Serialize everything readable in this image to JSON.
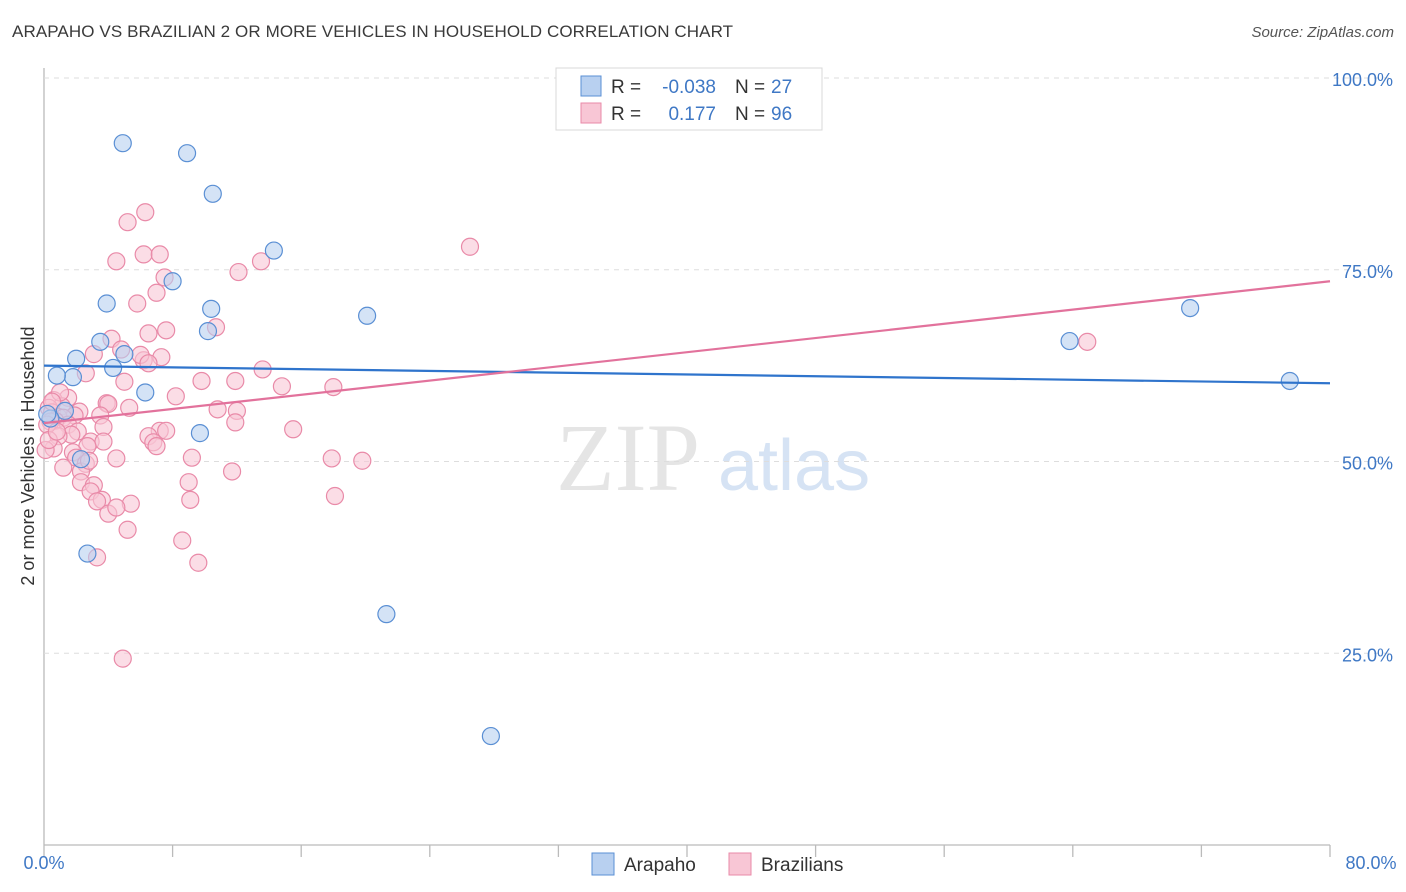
{
  "title": "ARAPAHO VS BRAZILIAN 2 OR MORE VEHICLES IN HOUSEHOLD CORRELATION CHART",
  "source": "Source: ZipAtlas.com",
  "watermark": {
    "zip": "ZIP",
    "atlas": "atlas"
  },
  "legend": {
    "rows": [
      {
        "r_label": "R =",
        "r_value": "-0.038",
        "n_label": "N =",
        "n_value": "27"
      },
      {
        "r_label": "R =",
        "r_value": "0.177",
        "n_label": "N =",
        "n_value": "96"
      }
    ]
  },
  "colors": {
    "arapaho_fill": "#b8d0f0",
    "arapaho_stroke": "#5a8fd4",
    "arapaho_line": "#2f74cc",
    "brazilian_fill": "#f8c6d5",
    "brazilian_stroke": "#e98aa8",
    "brazilian_line": "#e2729c",
    "tick": "#3f78c5",
    "grid": "#dddddd"
  },
  "chart_data": {
    "type": "scatter",
    "xlabel": "",
    "ylabel": "2 or more Vehicles in Household",
    "xlim": [
      0,
      80
    ],
    "ylim": [
      0,
      100
    ],
    "x_tick_labels": [
      "0.0%",
      "80.0%"
    ],
    "y_tick_labels": [
      "25.0%",
      "50.0%",
      "75.0%",
      "100.0%"
    ],
    "y_ticks": [
      25,
      50,
      75,
      100
    ],
    "series": [
      {
        "name": "Arapaho",
        "r": -0.038,
        "n": 27,
        "trend": {
          "x": [
            0,
            80
          ],
          "y": [
            62.5,
            60.2
          ]
        },
        "points": [
          [
            4.9,
            91.5
          ],
          [
            8.9,
            90.2
          ],
          [
            10.5,
            84.9
          ],
          [
            14.3,
            77.5
          ],
          [
            8.0,
            73.5
          ],
          [
            3.9,
            70.6
          ],
          [
            10.4,
            69.9
          ],
          [
            20.1,
            69.0
          ],
          [
            10.2,
            67.0
          ],
          [
            3.5,
            65.6
          ],
          [
            5.0,
            64.0
          ],
          [
            2.0,
            63.4
          ],
          [
            4.3,
            62.2
          ],
          [
            1.8,
            61.0
          ],
          [
            0.8,
            61.2
          ],
          [
            6.3,
            59.0
          ],
          [
            1.3,
            56.6
          ],
          [
            0.4,
            55.6
          ],
          [
            9.7,
            53.7
          ],
          [
            2.3,
            50.3
          ],
          [
            2.7,
            38.0
          ],
          [
            21.3,
            30.1
          ],
          [
            27.8,
            14.2
          ],
          [
            63.8,
            65.7
          ],
          [
            71.3,
            70.0
          ],
          [
            77.5,
            60.5
          ],
          [
            0.2,
            56.2
          ]
        ]
      },
      {
        "name": "Brazilians",
        "r": 0.177,
        "n": 96,
        "trend": {
          "x": [
            0,
            80
          ],
          "y": [
            55.0,
            73.5
          ]
        },
        "points": [
          [
            6.3,
            82.5
          ],
          [
            5.2,
            81.2
          ],
          [
            26.5,
            78.0
          ],
          [
            6.2,
            77.0
          ],
          [
            7.2,
            77.0
          ],
          [
            4.5,
            76.1
          ],
          [
            13.5,
            76.1
          ],
          [
            12.1,
            74.7
          ],
          [
            7.5,
            74.0
          ],
          [
            7.0,
            72.0
          ],
          [
            5.8,
            70.6
          ],
          [
            10.7,
            67.5
          ],
          [
            7.6,
            67.1
          ],
          [
            6.5,
            66.7
          ],
          [
            4.2,
            66.0
          ],
          [
            4.8,
            64.6
          ],
          [
            3.1,
            64.0
          ],
          [
            7.3,
            63.6
          ],
          [
            6.2,
            63.2
          ],
          [
            6.0,
            63.9
          ],
          [
            6.5,
            62.8
          ],
          [
            13.6,
            62.0
          ],
          [
            2.6,
            61.5
          ],
          [
            9.8,
            60.5
          ],
          [
            11.9,
            60.5
          ],
          [
            14.8,
            59.8
          ],
          [
            18.0,
            59.7
          ],
          [
            5.0,
            60.4
          ],
          [
            8.2,
            58.5
          ],
          [
            1.5,
            58.3
          ],
          [
            0.6,
            58.0
          ],
          [
            3.9,
            57.6
          ],
          [
            4.0,
            57.5
          ],
          [
            1.1,
            57.2
          ],
          [
            0.3,
            57.0
          ],
          [
            5.3,
            57.0
          ],
          [
            10.8,
            56.8
          ],
          [
            12.0,
            56.6
          ],
          [
            2.2,
            56.5
          ],
          [
            0.5,
            56.4
          ],
          [
            1.9,
            56.0
          ],
          [
            3.5,
            56.0
          ],
          [
            0.9,
            55.8
          ],
          [
            1.2,
            55.7
          ],
          [
            0.7,
            55.3
          ],
          [
            0.4,
            55.2
          ],
          [
            1.5,
            54.8
          ],
          [
            11.9,
            55.1
          ],
          [
            3.7,
            54.5
          ],
          [
            7.2,
            54.0
          ],
          [
            7.6,
            54.0
          ],
          [
            15.5,
            54.2
          ],
          [
            2.1,
            53.9
          ],
          [
            1.7,
            53.5
          ],
          [
            0.9,
            53.3
          ],
          [
            6.5,
            53.3
          ],
          [
            2.9,
            52.6
          ],
          [
            3.7,
            52.6
          ],
          [
            2.7,
            52.0
          ],
          [
            6.8,
            52.5
          ],
          [
            7.0,
            52.0
          ],
          [
            0.6,
            51.7
          ],
          [
            1.8,
            51.2
          ],
          [
            2.0,
            50.5
          ],
          [
            9.2,
            50.5
          ],
          [
            17.9,
            50.4
          ],
          [
            19.8,
            50.1
          ],
          [
            4.5,
            50.4
          ],
          [
            2.6,
            49.7
          ],
          [
            2.3,
            48.7
          ],
          [
            11.7,
            48.7
          ],
          [
            2.3,
            47.3
          ],
          [
            9.0,
            47.3
          ],
          [
            3.1,
            46.9
          ],
          [
            2.9,
            46.1
          ],
          [
            3.6,
            45.0
          ],
          [
            3.3,
            44.8
          ],
          [
            5.4,
            44.5
          ],
          [
            9.1,
            45.0
          ],
          [
            18.1,
            45.5
          ],
          [
            4.0,
            43.2
          ],
          [
            4.5,
            44.0
          ],
          [
            5.2,
            41.1
          ],
          [
            8.6,
            39.7
          ],
          [
            3.3,
            37.5
          ],
          [
            9.6,
            36.8
          ],
          [
            4.9,
            24.3
          ],
          [
            0.1,
            51.5
          ],
          [
            0.2,
            54.8
          ],
          [
            0.3,
            52.8
          ],
          [
            1.0,
            59.0
          ],
          [
            0.5,
            57.8
          ],
          [
            0.8,
            53.9
          ],
          [
            64.9,
            65.6
          ],
          [
            2.8,
            50.1
          ],
          [
            1.2,
            49.2
          ]
        ]
      }
    ]
  }
}
